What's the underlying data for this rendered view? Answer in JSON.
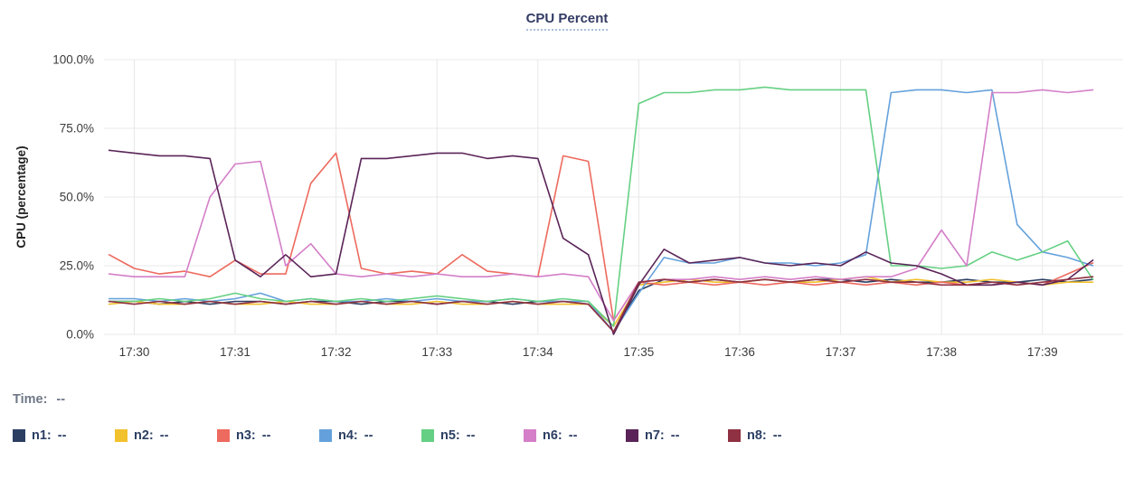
{
  "title": "CPU Percent",
  "time_row": {
    "label": "Time:",
    "value": "--"
  },
  "legend": {
    "items": [
      {
        "label": "n1:",
        "value": "--"
      },
      {
        "label": "n2:",
        "value": "--"
      },
      {
        "label": "n3:",
        "value": "--"
      },
      {
        "label": "n4:",
        "value": "--"
      },
      {
        "label": "n5:",
        "value": "--"
      },
      {
        "label": "n6:",
        "value": "--"
      },
      {
        "label": "n7:",
        "value": "--"
      },
      {
        "label": "n8:",
        "value": "--"
      }
    ]
  },
  "theme": {
    "title_color": "#333b64",
    "legend_text_color": "#2c3f63",
    "muted_text_color": "#6f7887",
    "grid_color": "#e8e8e8",
    "tick_color": "#3c3c3c",
    "axis_label_color": "#222222"
  },
  "chart_data": {
    "type": "line",
    "title": "CPU Percent",
    "xlabel": "",
    "ylabel": "CPU (percentage)",
    "ylim": [
      0,
      100
    ],
    "xlim_minutes": [
      -0.3,
      9.8
    ],
    "x_description": "minutes after 17:30",
    "grid": true,
    "legend_position": "bottom",
    "yticks": [
      {
        "value": 100,
        "label": "100.0%"
      },
      {
        "value": 75,
        "label": "75.0%"
      },
      {
        "value": 50,
        "label": "50.0%"
      },
      {
        "value": 25,
        "label": "25.0%"
      },
      {
        "value": 0,
        "label": "0.0%"
      }
    ],
    "xticks": [
      {
        "value": 0,
        "label": "17:30"
      },
      {
        "value": 1,
        "label": "17:31"
      },
      {
        "value": 2,
        "label": "17:32"
      },
      {
        "value": 3,
        "label": "17:33"
      },
      {
        "value": 4,
        "label": "17:34"
      },
      {
        "value": 5,
        "label": "17:35"
      },
      {
        "value": 6,
        "label": "17:36"
      },
      {
        "value": 7,
        "label": "17:37"
      },
      {
        "value": 8,
        "label": "17:38"
      },
      {
        "value": 9,
        "label": "17:39"
      }
    ],
    "x": [
      -0.25,
      0,
      0.25,
      0.5,
      0.75,
      1,
      1.25,
      1.5,
      1.75,
      2,
      2.25,
      2.5,
      2.75,
      3,
      3.25,
      3.5,
      3.75,
      4,
      4.25,
      4.5,
      4.75,
      5,
      5.25,
      5.5,
      5.75,
      6,
      6.25,
      6.5,
      6.75,
      7,
      7.25,
      7.5,
      7.75,
      8,
      8.25,
      8.5,
      8.75,
      9,
      9.25,
      9.5
    ],
    "series": [
      {
        "name": "n1",
        "color": "#2c3f63",
        "values": [
          12,
          12,
          11,
          12,
          11,
          12,
          12,
          11,
          12,
          12,
          11,
          12,
          12,
          11,
          12,
          12,
          11,
          12,
          12,
          11,
          1,
          16,
          20,
          19,
          20,
          19,
          20,
          19,
          20,
          20,
          19,
          20,
          19,
          19,
          20,
          19,
          19,
          20,
          19,
          20
        ]
      },
      {
        "name": "n2",
        "color": "#f2c12e",
        "values": [
          11,
          12,
          11,
          11,
          12,
          11,
          11,
          12,
          11,
          11,
          12,
          11,
          11,
          12,
          11,
          11,
          12,
          11,
          11,
          11,
          3,
          18,
          19,
          20,
          19,
          19,
          20,
          19,
          19,
          20,
          21,
          19,
          20,
          19,
          19,
          20,
          19,
          18,
          19,
          19
        ]
      },
      {
        "name": "n3",
        "color": "#ed6a5e",
        "values": [
          29,
          24,
          22,
          23,
          21,
          27,
          22,
          22,
          55,
          66,
          24,
          22,
          23,
          22,
          29,
          23,
          22,
          21,
          65,
          63,
          5,
          19,
          18,
          19,
          18,
          19,
          18,
          19,
          18,
          19,
          18,
          19,
          18,
          19,
          18,
          18,
          19,
          18,
          22,
          26
        ]
      },
      {
        "name": "n4",
        "color": "#64a1dc",
        "values": [
          13,
          13,
          12,
          13,
          12,
          13,
          15,
          12,
          13,
          12,
          12,
          13,
          12,
          13,
          12,
          12,
          13,
          12,
          12,
          12,
          1,
          15,
          28,
          26,
          26,
          28,
          26,
          26,
          25,
          26,
          29,
          88,
          89,
          89,
          88,
          89,
          40,
          30,
          28,
          25
        ]
      },
      {
        "name": "n5",
        "color": "#65d083",
        "values": [
          12,
          12,
          13,
          12,
          13,
          15,
          13,
          12,
          13,
          12,
          13,
          12,
          13,
          14,
          13,
          12,
          13,
          12,
          13,
          12,
          3,
          84,
          88,
          88,
          89,
          89,
          90,
          89,
          89,
          89,
          89,
          25,
          25,
          24,
          25,
          30,
          27,
          30,
          34,
          20
        ]
      },
      {
        "name": "n6",
        "color": "#d47fc8",
        "values": [
          22,
          21,
          21,
          21,
          50,
          62,
          63,
          25,
          33,
          22,
          21,
          22,
          21,
          22,
          21,
          21,
          22,
          21,
          22,
          21,
          5,
          19,
          20,
          20,
          21,
          20,
          21,
          20,
          21,
          20,
          21,
          21,
          24,
          38,
          25,
          88,
          88,
          89,
          88,
          89
        ]
      },
      {
        "name": "n7",
        "color": "#5a2458",
        "values": [
          67,
          66,
          65,
          65,
          64,
          27,
          21,
          29,
          21,
          22,
          64,
          64,
          65,
          66,
          66,
          64,
          65,
          64,
          35,
          29,
          0,
          18,
          31,
          26,
          27,
          28,
          26,
          25,
          26,
          25,
          30,
          26,
          25,
          22,
          18,
          18,
          19,
          18,
          20,
          27
        ]
      },
      {
        "name": "n8",
        "color": "#8f3142",
        "values": [
          12,
          11,
          12,
          11,
          12,
          11,
          12,
          11,
          12,
          11,
          12,
          11,
          12,
          11,
          12,
          11,
          12,
          11,
          12,
          11,
          1,
          19,
          20,
          19,
          20,
          19,
          20,
          19,
          20,
          19,
          20,
          19,
          19,
          18,
          18,
          19,
          18,
          19,
          20,
          21
        ]
      }
    ]
  }
}
